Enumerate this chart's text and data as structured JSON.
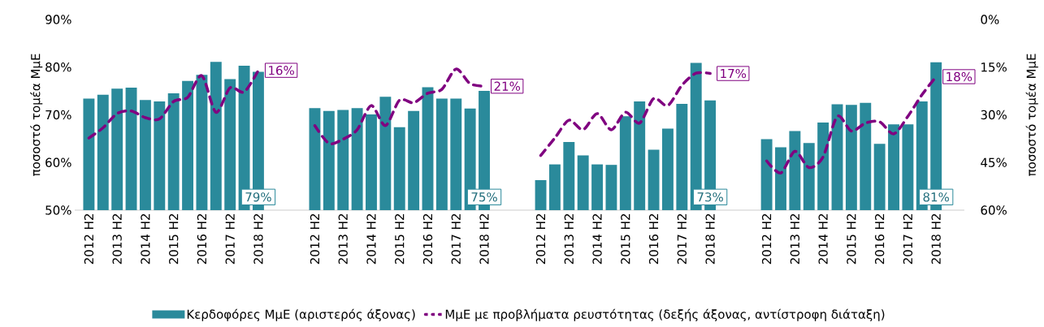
{
  "chart_data": {
    "type": "bar",
    "categories": [
      "2012 H2",
      null,
      "2013 H2",
      null,
      "2014 H2",
      null,
      "2015 H2",
      null,
      "2016 H2",
      null,
      "2017 H2",
      null,
      "2018 H2",
      null,
      null,
      null,
      "2012 H2",
      null,
      "2013 H2",
      null,
      "2014 H2",
      null,
      "2015 H2",
      null,
      "2016 H2",
      null,
      "2017 H2",
      null,
      "2018 H2",
      null,
      null,
      null,
      "2012 H2",
      null,
      "2013 H2",
      null,
      "2014 H2",
      null,
      "2015 H2",
      null,
      "2016 H2",
      null,
      "2017 H2",
      null,
      "2018 H2",
      null,
      null,
      null,
      "2012 H2",
      null,
      "2013 H2",
      null,
      "2014 H2",
      null,
      "2015 H2",
      null,
      "2016 H2",
      null,
      "2017 H2",
      null,
      "2018 H2"
    ],
    "series": [
      {
        "name": "Κερδοφόρες ΜμΕ (αριστερός άξονας)",
        "color": "#2a8a9b",
        "values": [
          73.4,
          74.2,
          75.5,
          75.7,
          73.1,
          72.8,
          74.5,
          77.1,
          78.4,
          81.1,
          77.5,
          80.3,
          79,
          null,
          null,
          null,
          71.4,
          70.8,
          71.0,
          71.4,
          70.1,
          73.8,
          67.4,
          70.8,
          75.8,
          73.4,
          73.4,
          71.3,
          75,
          null,
          null,
          null,
          56.3,
          59.6,
          64.3,
          61.5,
          59.6,
          59.5,
          69.7,
          72.8,
          62.7,
          67.1,
          72.3,
          80.9,
          73,
          null,
          null,
          null,
          64.9,
          63.2,
          66.6,
          64.1,
          68.4,
          72.2,
          72.1,
          72.5,
          63.9,
          68.0,
          68.0,
          72.8,
          81
        ],
        "value_labels": [
          null,
          null,
          null,
          null,
          null,
          null,
          null,
          null,
          null,
          null,
          null,
          null,
          "79%",
          null,
          null,
          null,
          null,
          null,
          null,
          null,
          null,
          null,
          null,
          null,
          null,
          null,
          null,
          null,
          "75%",
          null,
          null,
          null,
          null,
          null,
          null,
          null,
          null,
          null,
          null,
          null,
          null,
          null,
          null,
          null,
          "73%",
          null,
          null,
          null,
          null,
          null,
          null,
          null,
          null,
          null,
          null,
          null,
          null,
          null,
          null,
          null,
          "81%"
        ]
      },
      {
        "name": "ΜμΕ με προβλήματα ρευστότητας (δεξής άξονας, αντίστροφη διάταξη)",
        "type": "line",
        "axis": "y2",
        "line_style": "dashed",
        "color": "#800080",
        "values": [
          37.3,
          34.1,
          29.6,
          28.8,
          30.9,
          31.3,
          25.8,
          24.5,
          17.7,
          29.2,
          21.5,
          22.8,
          16,
          null,
          null,
          null,
          33.4,
          39.0,
          37.7,
          34.7,
          27.1,
          33.4,
          25.4,
          26.2,
          23.2,
          22.0,
          15.6,
          20.2,
          21,
          null,
          null,
          null,
          42.8,
          37.3,
          31.7,
          34.7,
          29.6,
          34.7,
          29.2,
          32.6,
          24.9,
          27.1,
          20.7,
          16.9,
          17,
          null,
          null,
          null,
          44.5,
          48.3,
          41.5,
          46.6,
          43.2,
          30.5,
          35.1,
          32.6,
          32.2,
          36.0,
          30.5,
          23.7,
          18
        ],
        "value_labels": [
          null,
          null,
          null,
          null,
          null,
          null,
          null,
          null,
          null,
          null,
          null,
          null,
          "16%",
          null,
          null,
          null,
          null,
          null,
          null,
          null,
          null,
          null,
          null,
          null,
          null,
          null,
          null,
          null,
          "21%",
          null,
          null,
          null,
          null,
          null,
          null,
          null,
          null,
          null,
          null,
          null,
          null,
          null,
          null,
          null,
          "17%",
          null,
          null,
          null,
          null,
          null,
          null,
          null,
          null,
          null,
          null,
          null,
          null,
          null,
          null,
          null,
          "18%"
        ]
      }
    ],
    "ylabel": "ποσοστό τομέα ΜμΕ",
    "y2label": "ποσοστό τομέα ΜμΕ",
    "ylim": [
      50,
      90
    ],
    "yticks": [
      {
        "value": 50,
        "label": "50%"
      },
      {
        "value": 60,
        "label": "60%"
      },
      {
        "value": 70,
        "label": "70%"
      },
      {
        "value": 80,
        "label": "80%"
      },
      {
        "value": 90,
        "label": "90%"
      }
    ],
    "y2lim": [
      60,
      0
    ],
    "y2ticks": [
      {
        "value": 0,
        "label": "0%"
      },
      {
        "value": 15,
        "label": "15%"
      },
      {
        "value": 30,
        "label": "30%"
      },
      {
        "value": 45,
        "label": "45%"
      },
      {
        "value": 60,
        "label": "60%"
      }
    ],
    "legend": "bottom"
  }
}
